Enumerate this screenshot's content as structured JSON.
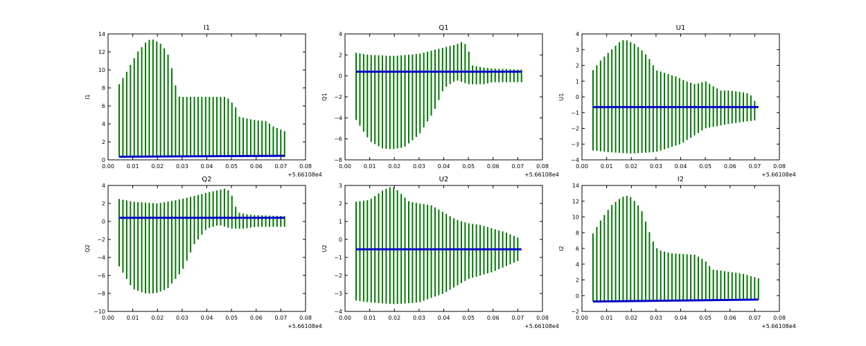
{
  "colors": {
    "envelope": "#007700",
    "baseline": "#0000cc",
    "axis": "#000000"
  },
  "chart_data": [
    {
      "type": "line",
      "title": "I1",
      "ylabel": "I1",
      "xlim": [
        0.0,
        0.08
      ],
      "ylim": [
        0,
        14
      ],
      "xticks": [
        "0.00",
        "0.01",
        "0.02",
        "0.03",
        "0.04",
        "0.05",
        "0.06",
        "0.07",
        "0.08"
      ],
      "yticks": [
        "0",
        "2",
        "4",
        "6",
        "8",
        "10",
        "12",
        "14"
      ],
      "x_offset_label": "+5.66108e4",
      "x_start": 0.0045,
      "x_end": 0.0715,
      "n_lines": 45,
      "series": [
        {
          "name": "oscillation upper envelope",
          "x": [
            0.0045,
            0.008,
            0.012,
            0.016,
            0.018,
            0.021,
            0.024,
            0.0265,
            0.028,
            0.029,
            0.032,
            0.036,
            0.04,
            0.044,
            0.048,
            0.0515,
            0.053,
            0.056,
            0.06,
            0.064,
            0.067,
            0.0715
          ],
          "y": [
            8.4,
            10.0,
            12.0,
            13.3,
            13.4,
            13.0,
            12.0,
            9.5,
            7.3,
            7.0,
            7.0,
            7.0,
            7.0,
            7.0,
            7.0,
            6.0,
            4.8,
            4.6,
            4.4,
            4.3,
            3.7,
            3.2
          ]
        },
        {
          "name": "oscillation lower envelope",
          "x": [
            0.0045,
            0.0715
          ],
          "y": [
            0.3,
            0.3
          ]
        },
        {
          "name": "baseline",
          "x": [
            0.0045,
            0.0715
          ],
          "y": [
            0.35,
            0.45
          ]
        }
      ]
    },
    {
      "type": "line",
      "title": "Q1",
      "ylabel": "Q1",
      "xlim": [
        0.0,
        0.08
      ],
      "ylim": [
        -8,
        4
      ],
      "xticks": [
        "0.00",
        "0.01",
        "0.02",
        "0.03",
        "0.04",
        "0.05",
        "0.06",
        "0.07",
        "0.08"
      ],
      "yticks": [
        "−8",
        "−6",
        "−4",
        "−2",
        "0",
        "2",
        "4"
      ],
      "x_offset_label": "+5.66108e4",
      "x_start": 0.0045,
      "x_end": 0.0715,
      "n_lines": 45,
      "series": [
        {
          "name": "oscillation upper envelope",
          "x": [
            0.0045,
            0.01,
            0.02,
            0.03,
            0.04,
            0.045,
            0.048,
            0.05,
            0.0515,
            0.056,
            0.06,
            0.0715
          ],
          "y": [
            2.2,
            2.0,
            1.9,
            2.1,
            2.7,
            3.0,
            3.3,
            2.5,
            1.0,
            0.8,
            0.7,
            0.6
          ]
        },
        {
          "name": "oscillation lower envelope",
          "x": [
            0.0045,
            0.01,
            0.015,
            0.019,
            0.024,
            0.03,
            0.036,
            0.04,
            0.045,
            0.05,
            0.056,
            0.06,
            0.0715
          ],
          "y": [
            -4.2,
            -6.2,
            -6.9,
            -7.0,
            -6.8,
            -5.6,
            -3.4,
            -1.2,
            -0.4,
            -0.8,
            -0.8,
            -0.6,
            -0.6
          ]
        },
        {
          "name": "baseline",
          "x": [
            0.0045,
            0.0715
          ],
          "y": [
            0.4,
            0.4
          ]
        }
      ]
    },
    {
      "type": "line",
      "title": "U1",
      "ylabel": "U1",
      "xlim": [
        0.0,
        0.08
      ],
      "ylim": [
        -4,
        4
      ],
      "xticks": [
        "0.00",
        "0.01",
        "0.02",
        "0.03",
        "0.04",
        "0.05",
        "0.06",
        "0.07",
        "0.08"
      ],
      "yticks": [
        "−4",
        "−3",
        "−2",
        "−1",
        "0",
        "1",
        "2",
        "3",
        "4"
      ],
      "x_offset_label": "+5.66108e4",
      "x_start": 0.0045,
      "x_end": 0.0715,
      "n_lines": 45,
      "series": [
        {
          "name": "oscillation upper envelope",
          "x": [
            0.0045,
            0.008,
            0.012,
            0.016,
            0.018,
            0.021,
            0.024,
            0.027,
            0.03,
            0.034,
            0.038,
            0.042,
            0.046,
            0.05,
            0.053,
            0.056,
            0.06,
            0.065,
            0.068,
            0.0715
          ],
          "y": [
            1.7,
            2.4,
            3.0,
            3.6,
            3.6,
            3.4,
            3.0,
            2.5,
            1.7,
            1.5,
            1.3,
            1.0,
            0.8,
            1.0,
            0.7,
            0.4,
            0.4,
            0.3,
            0.2,
            -0.6
          ]
        },
        {
          "name": "oscillation lower envelope",
          "x": [
            0.0045,
            0.01,
            0.02,
            0.03,
            0.04,
            0.05,
            0.06,
            0.07,
            0.0715
          ],
          "y": [
            -3.4,
            -3.5,
            -3.6,
            -3.5,
            -3.0,
            -2.0,
            -1.7,
            -1.5,
            -0.6
          ]
        },
        {
          "name": "baseline",
          "x": [
            0.0045,
            0.0715
          ],
          "y": [
            -0.65,
            -0.65
          ]
        }
      ]
    },
    {
      "type": "line",
      "title": "Q2",
      "ylabel": "Q2",
      "xlim": [
        0.0,
        0.08
      ],
      "ylim": [
        -10,
        4
      ],
      "xticks": [
        "0.00",
        "0.01",
        "0.02",
        "0.03",
        "0.04",
        "0.05",
        "0.06",
        "0.07",
        "0.08"
      ],
      "yticks": [
        "−10",
        "−8",
        "−6",
        "−4",
        "−2",
        "0",
        "2",
        "4"
      ],
      "x_offset_label": "+5.66108e4",
      "x_start": 0.0045,
      "x_end": 0.0715,
      "n_lines": 45,
      "series": [
        {
          "name": "oscillation upper envelope",
          "x": [
            0.0045,
            0.01,
            0.02,
            0.03,
            0.04,
            0.045,
            0.048,
            0.05,
            0.0525,
            0.056,
            0.06,
            0.0715
          ],
          "y": [
            2.5,
            2.2,
            2.0,
            2.5,
            3.2,
            3.5,
            3.7,
            3.0,
            1.0,
            0.8,
            0.7,
            0.6
          ]
        },
        {
          "name": "oscillation lower envelope",
          "x": [
            0.0045,
            0.01,
            0.015,
            0.019,
            0.024,
            0.03,
            0.035,
            0.04,
            0.045,
            0.05,
            0.055,
            0.06,
            0.0715
          ],
          "y": [
            -5.0,
            -7.5,
            -8.0,
            -8.0,
            -7.5,
            -5.5,
            -2.5,
            -0.8,
            -0.4,
            -0.8,
            -0.8,
            -0.6,
            -0.6
          ]
        },
        {
          "name": "baseline",
          "x": [
            0.0045,
            0.0715
          ],
          "y": [
            0.4,
            0.4
          ]
        }
      ]
    },
    {
      "type": "line",
      "title": "U2",
      "ylabel": "U2",
      "xlim": [
        0.0,
        0.08
      ],
      "ylim": [
        -4,
        3
      ],
      "xticks": [
        "0.00",
        "0.01",
        "0.02",
        "0.03",
        "0.04",
        "0.05",
        "0.06",
        "0.07",
        "0.08"
      ],
      "yticks": [
        "−4",
        "−3",
        "−2",
        "−1",
        "0",
        "1",
        "2",
        "3"
      ],
      "x_offset_label": "+5.66108e4",
      "x_start": 0.0045,
      "x_end": 0.0715,
      "n_lines": 45,
      "series": [
        {
          "name": "oscillation upper envelope",
          "x": [
            0.0045,
            0.01,
            0.015,
            0.018,
            0.02,
            0.023,
            0.026,
            0.03,
            0.035,
            0.04,
            0.045,
            0.05,
            0.055,
            0.06,
            0.065,
            0.07,
            0.0715
          ],
          "y": [
            2.1,
            2.2,
            2.7,
            2.9,
            2.9,
            2.5,
            2.1,
            2.0,
            1.9,
            1.5,
            1.1,
            0.9,
            0.8,
            0.6,
            0.4,
            0.1,
            -0.5
          ]
        },
        {
          "name": "oscillation lower envelope",
          "x": [
            0.0045,
            0.01,
            0.02,
            0.03,
            0.04,
            0.05,
            0.06,
            0.07,
            0.0715
          ],
          "y": [
            -3.4,
            -3.5,
            -3.6,
            -3.5,
            -3.0,
            -2.2,
            -1.8,
            -1.2,
            -0.5
          ]
        },
        {
          "name": "baseline",
          "x": [
            0.0045,
            0.0715
          ],
          "y": [
            -0.55,
            -0.55
          ]
        }
      ]
    },
    {
      "type": "line",
      "title": "I2",
      "ylabel": "I2",
      "xlim": [
        0.0,
        0.08
      ],
      "ylim": [
        -2,
        14
      ],
      "xticks": [
        "0.00",
        "0.01",
        "0.02",
        "0.03",
        "0.04",
        "0.05",
        "0.06",
        "0.07",
        "0.08"
      ],
      "yticks": [
        "−2",
        "0",
        "2",
        "4",
        "6",
        "8",
        "10",
        "12",
        "14"
      ],
      "x_offset_label": "+5.66108e4",
      "x_start": 0.0045,
      "x_end": 0.0715,
      "n_lines": 45,
      "series": [
        {
          "name": "oscillation upper envelope",
          "x": [
            0.0045,
            0.008,
            0.012,
            0.016,
            0.018,
            0.02,
            0.024,
            0.028,
            0.03,
            0.032,
            0.036,
            0.04,
            0.046,
            0.05,
            0.053,
            0.056,
            0.06,
            0.065,
            0.0715
          ],
          "y": [
            7.9,
            9.8,
            11.5,
            12.5,
            12.7,
            12.5,
            11.0,
            7.5,
            6.1,
            5.7,
            5.4,
            5.3,
            5.2,
            4.4,
            3.3,
            3.2,
            3.0,
            2.8,
            2.2
          ]
        },
        {
          "name": "oscillation lower envelope",
          "x": [
            0.0045,
            0.0715
          ],
          "y": [
            -0.75,
            -0.5
          ]
        },
        {
          "name": "baseline",
          "x": [
            0.0045,
            0.0715
          ],
          "y": [
            -0.75,
            -0.5
          ]
        }
      ]
    }
  ]
}
